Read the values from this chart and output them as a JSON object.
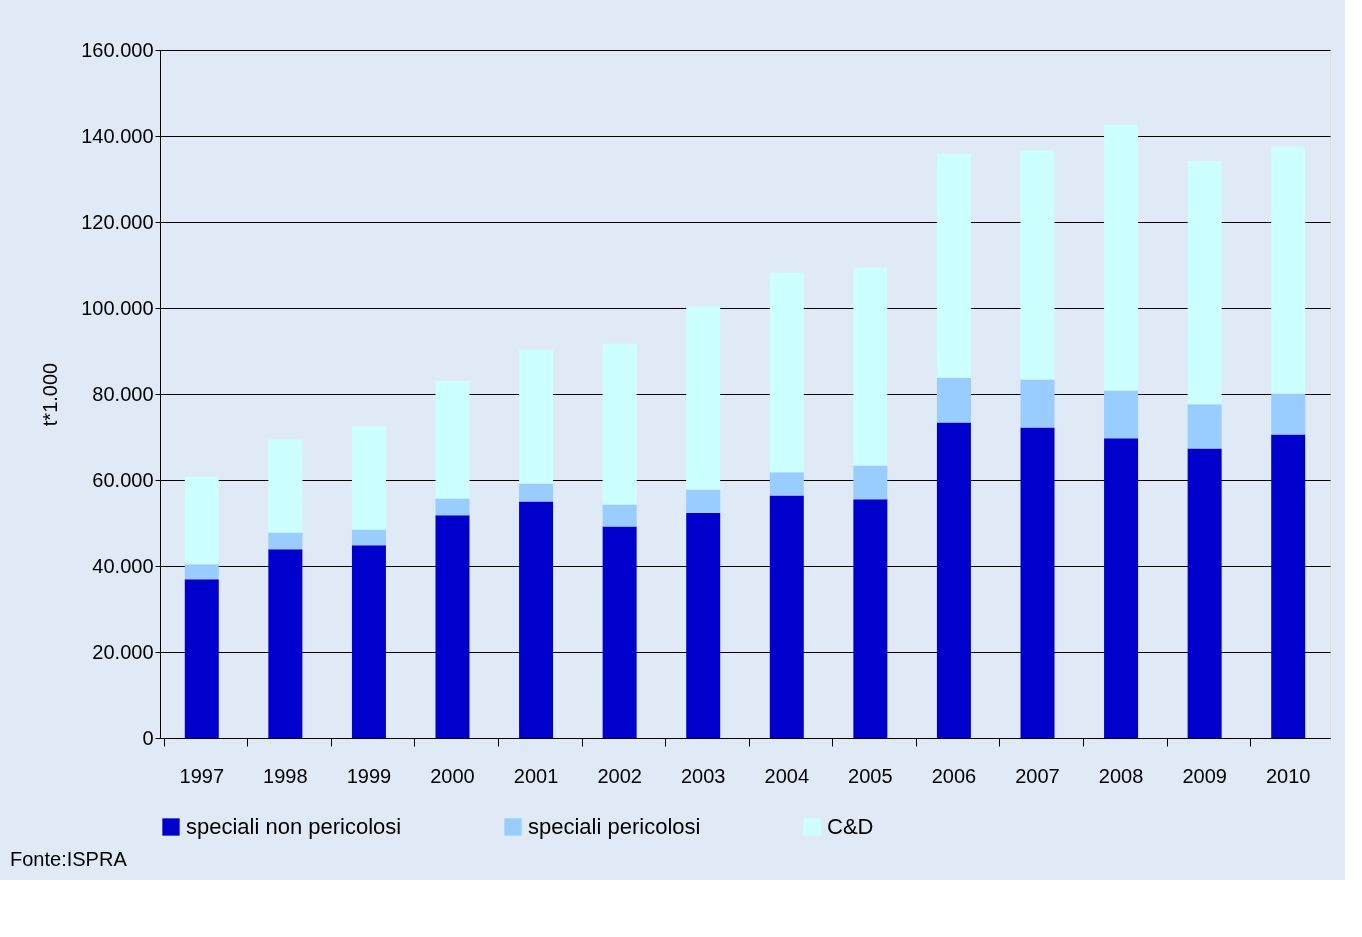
{
  "chart_data": {
    "type": "bar",
    "stacked": true,
    "ylabel": "t*1.000",
    "categories": [
      "1997",
      "1998",
      "1999",
      "2000",
      "2001",
      "2002",
      "2003",
      "2004",
      "2005",
      "2006",
      "2007",
      "2008",
      "2009",
      "2010"
    ],
    "series": [
      {
        "name": "speciali non pericolosi",
        "color": "#0000cc",
        "values": [
          36900,
          43900,
          44800,
          51800,
          55000,
          49200,
          52300,
          56400,
          55500,
          73400,
          72200,
          69700,
          67300,
          70600
        ]
      },
      {
        "name": "speciali pericolosi",
        "color": "#99ccff",
        "values": [
          3500,
          3900,
          3700,
          3900,
          4200,
          5100,
          5500,
          5400,
          7900,
          10400,
          11200,
          11100,
          10300,
          9500
        ]
      },
      {
        "name": "C&D",
        "color": "#ccffff",
        "values": [
          20400,
          21600,
          24000,
          27400,
          31100,
          37400,
          42500,
          46400,
          46000,
          52100,
          53200,
          61800,
          56600,
          57400
        ]
      }
    ],
    "ylim": [
      0,
      160000
    ],
    "yticks": [
      0,
      {
        "value": 20000,
        "label": "20.000"
      },
      {
        "value": 40000,
        "label": "40.000"
      },
      {
        "value": 60000,
        "label": "60.000"
      },
      {
        "value": 80000,
        "label": "80.000"
      },
      {
        "value": 100000,
        "label": "100.000"
      },
      {
        "value": 120000,
        "label": "120.000"
      },
      {
        "value": 140000,
        "label": "140.000"
      },
      {
        "value": 160000,
        "label": "160.000"
      }
    ],
    "grid": "y",
    "legend": "bottom",
    "annotations": [
      "Fonte:ISPRA"
    ]
  }
}
